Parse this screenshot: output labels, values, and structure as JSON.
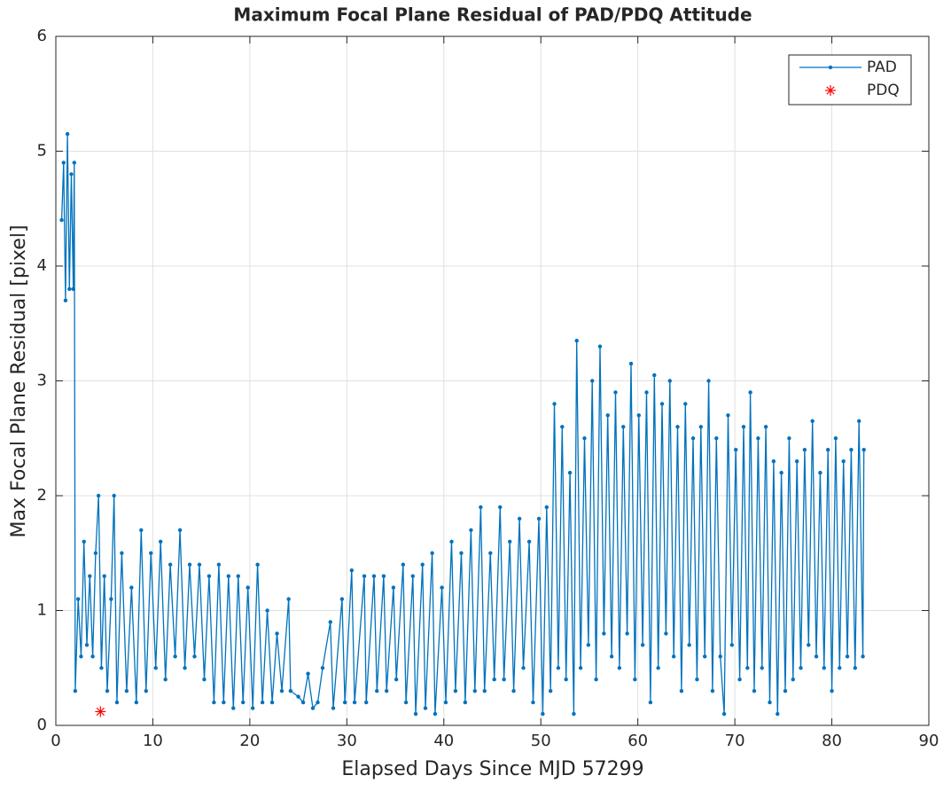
{
  "chart_data": {
    "type": "line",
    "title": "Maximum Focal Plane Residual of PAD/PDQ Attitude",
    "xlabel": "Elapsed Days Since MJD 57299",
    "ylabel": "Max Focal Plane Residual [pixel]",
    "xlim": [
      0,
      90
    ],
    "xticks": [
      0,
      10,
      20,
      30,
      40,
      50,
      60,
      70,
      80,
      90
    ],
    "ylim": [
      0,
      6
    ],
    "yticks": [
      0,
      1,
      2,
      3,
      4,
      5,
      6
    ],
    "grid": true,
    "legend": "top-right",
    "series": [
      {
        "name": "PAD",
        "color": "#0072bd",
        "marker": "dot",
        "x": [
          0.6,
          0.8,
          1.0,
          1.2,
          1.4,
          1.6,
          1.8,
          1.9,
          2.0,
          2.3,
          2.6,
          2.9,
          3.2,
          3.5,
          3.8,
          4.1,
          4.4,
          4.7,
          5.0,
          5.3,
          5.7,
          6.0,
          6.3,
          6.8,
          7.3,
          7.8,
          8.3,
          8.8,
          9.3,
          9.8,
          10.3,
          10.8,
          11.3,
          11.8,
          12.3,
          12.8,
          13.3,
          13.8,
          14.3,
          14.8,
          15.3,
          15.8,
          16.3,
          16.8,
          17.3,
          17.8,
          18.3,
          18.8,
          19.3,
          19.8,
          20.3,
          20.8,
          21.3,
          21.8,
          22.3,
          22.8,
          23.3,
          24.0,
          24.2,
          25.0,
          25.5,
          26.0,
          26.5,
          27.0,
          27.5,
          28.3,
          28.6,
          29.5,
          29.8,
          30.5,
          30.8,
          31.8,
          32.0,
          32.8,
          33.1,
          33.8,
          34.1,
          34.8,
          35.1,
          35.8,
          36.1,
          36.8,
          37.1,
          37.8,
          38.1,
          38.8,
          39.1,
          39.8,
          40.2,
          40.8,
          41.2,
          41.8,
          42.2,
          42.8,
          43.2,
          43.8,
          44.2,
          44.8,
          45.2,
          45.8,
          46.2,
          46.8,
          47.2,
          47.8,
          48.2,
          48.8,
          49.2,
          49.8,
          50.2,
          50.6,
          51.0,
          51.4,
          51.8,
          52.2,
          52.6,
          53.0,
          53.4,
          53.7,
          54.1,
          54.5,
          54.9,
          55.3,
          55.7,
          56.1,
          56.5,
          56.9,
          57.3,
          57.7,
          58.1,
          58.5,
          58.9,
          59.3,
          59.7,
          60.1,
          60.5,
          60.9,
          61.3,
          61.7,
          62.1,
          62.5,
          62.9,
          63.3,
          63.7,
          64.1,
          64.5,
          64.9,
          65.3,
          65.7,
          66.1,
          66.5,
          66.9,
          67.3,
          67.7,
          68.1,
          68.5,
          68.9,
          69.3,
          69.7,
          70.1,
          70.5,
          70.9,
          71.3,
          71.6,
          72.0,
          72.4,
          72.8,
          73.2,
          73.6,
          74.0,
          74.4,
          74.8,
          75.2,
          75.6,
          76.0,
          76.4,
          76.8,
          77.2,
          77.6,
          78.0,
          78.4,
          78.8,
          79.2,
          79.6,
          80.0,
          80.4,
          80.8,
          81.2,
          81.6,
          82.0,
          82.4,
          82.8,
          83.2,
          83.3
        ],
        "values": [
          4.4,
          4.9,
          3.7,
          5.15,
          3.8,
          4.8,
          3.8,
          4.9,
          0.3,
          1.1,
          0.6,
          1.6,
          0.7,
          1.3,
          0.6,
          1.5,
          2.0,
          0.5,
          1.3,
          0.3,
          1.1,
          2.0,
          0.2,
          1.5,
          0.3,
          1.2,
          0.2,
          1.7,
          0.3,
          1.5,
          0.5,
          1.6,
          0.4,
          1.4,
          0.6,
          1.7,
          0.5,
          1.4,
          0.6,
          1.4,
          0.4,
          1.3,
          0.2,
          1.4,
          0.2,
          1.3,
          0.15,
          1.3,
          0.2,
          1.2,
          0.15,
          1.4,
          0.2,
          1.0,
          0.2,
          0.8,
          0.3,
          1.1,
          0.3,
          0.25,
          0.2,
          0.45,
          0.15,
          0.2,
          0.5,
          0.9,
          0.15,
          1.1,
          0.2,
          1.35,
          0.2,
          1.3,
          0.2,
          1.3,
          0.3,
          1.3,
          0.3,
          1.2,
          0.4,
          1.4,
          0.2,
          1.3,
          0.1,
          1.4,
          0.15,
          1.5,
          0.1,
          1.2,
          0.2,
          1.6,
          0.3,
          1.5,
          0.2,
          1.7,
          0.3,
          1.9,
          0.3,
          1.5,
          0.4,
          1.9,
          0.4,
          1.6,
          0.3,
          1.8,
          0.5,
          1.6,
          0.2,
          1.8,
          0.1,
          1.9,
          0.3,
          2.8,
          0.5,
          2.6,
          0.4,
          2.2,
          0.1,
          3.35,
          0.5,
          2.5,
          0.7,
          3.0,
          0.4,
          3.3,
          0.8,
          2.7,
          0.6,
          2.9,
          0.5,
          2.6,
          0.8,
          3.15,
          0.4,
          2.7,
          0.7,
          2.9,
          0.2,
          3.05,
          0.5,
          2.8,
          0.8,
          3.0,
          0.6,
          2.6,
          0.3,
          2.8,
          0.7,
          2.5,
          0.4,
          2.6,
          0.6,
          3.0,
          0.3,
          2.5,
          0.6,
          0.1,
          2.7,
          0.7,
          2.4,
          0.4,
          2.6,
          0.5,
          2.9,
          0.3,
          2.5,
          0.5,
          2.6,
          0.2,
          2.3,
          0.1,
          2.2,
          0.3,
          2.5,
          0.4,
          2.3,
          0.5,
          2.4,
          0.7,
          2.65,
          0.6,
          2.2,
          0.5,
          2.4,
          0.3,
          2.5,
          0.5,
          2.3,
          0.6,
          2.4,
          0.5,
          2.65,
          0.6,
          2.4
        ]
      },
      {
        "name": "PDQ",
        "color": "#ff0000",
        "marker": "asterisk",
        "x": [
          4.6
        ],
        "values": [
          0.12
        ]
      }
    ]
  }
}
